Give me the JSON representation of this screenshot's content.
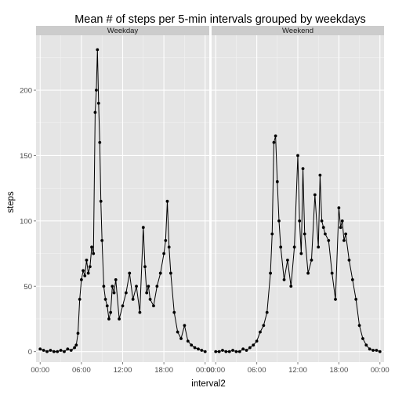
{
  "chart_data": {
    "type": "line",
    "title": "Mean # of steps per 5-min intervals grouped by weekdays",
    "xlabel": "interval2",
    "ylabel": "steps",
    "ylim": [
      -8,
      242
    ],
    "xlim": [
      -0.6,
      24.6
    ],
    "x_tick_values": [
      0,
      6,
      12,
      18,
      24
    ],
    "x_tick_labels": [
      "00:00",
      "06:00",
      "12:00",
      "18:00",
      "00:00"
    ],
    "y_ticks": [
      0,
      50,
      100,
      150,
      200
    ],
    "x_unit": "hours",
    "grid": true,
    "markers": true,
    "series_color": "#000000",
    "panels": [
      {
        "label": "Weekday",
        "x": [
          0,
          0.5,
          1,
          1.5,
          2,
          2.5,
          3,
          3.5,
          4,
          4.5,
          5,
          5.25,
          5.5,
          5.75,
          6,
          6.25,
          6.5,
          6.75,
          7,
          7.25,
          7.5,
          7.75,
          8,
          8.17,
          8.33,
          8.5,
          8.67,
          8.83,
          9,
          9.25,
          9.5,
          9.75,
          10,
          10.25,
          10.5,
          10.75,
          11,
          11.5,
          12,
          12.5,
          13,
          13.5,
          14,
          14.5,
          15,
          15.25,
          15.5,
          15.75,
          16,
          16.5,
          17,
          17.5,
          18,
          18.25,
          18.5,
          18.75,
          19,
          19.5,
          20,
          20.5,
          21,
          21.5,
          22,
          22.5,
          23,
          23.5,
          24
        ],
        "y": [
          2,
          1,
          0,
          1,
          0,
          0,
          1,
          0,
          2,
          1,
          3,
          5,
          14,
          40,
          55,
          62,
          58,
          70,
          60,
          65,
          80,
          75,
          183,
          200,
          231,
          190,
          160,
          115,
          85,
          50,
          40,
          35,
          25,
          30,
          50,
          45,
          55,
          25,
          35,
          45,
          60,
          40,
          50,
          30,
          95,
          65,
          45,
          50,
          40,
          35,
          50,
          60,
          75,
          85,
          115,
          80,
          60,
          30,
          15,
          10,
          20,
          8,
          5,
          3,
          2,
          1,
          0
        ]
      },
      {
        "label": "Weekend",
        "x": [
          0,
          0.5,
          1,
          1.5,
          2,
          2.5,
          3,
          3.5,
          4,
          4.5,
          5,
          5.5,
          6,
          6.5,
          7,
          7.5,
          8,
          8.25,
          8.5,
          8.75,
          9,
          9.25,
          9.5,
          10,
          10.5,
          11,
          11.5,
          12,
          12.25,
          12.5,
          12.75,
          13,
          13.5,
          14,
          14.5,
          15,
          15.25,
          15.5,
          15.75,
          16,
          16.5,
          17,
          17.5,
          18,
          18.25,
          18.5,
          18.75,
          19,
          19.5,
          20,
          20.5,
          21,
          21.5,
          22,
          22.5,
          23,
          23.5,
          24
        ],
        "y": [
          0,
          0,
          1,
          0,
          0,
          1,
          0,
          0,
          2,
          1,
          3,
          5,
          8,
          15,
          20,
          30,
          60,
          90,
          160,
          165,
          130,
          100,
          80,
          55,
          70,
          50,
          80,
          150,
          100,
          75,
          140,
          90,
          60,
          70,
          120,
          80,
          135,
          100,
          95,
          90,
          85,
          60,
          40,
          110,
          95,
          100,
          85,
          90,
          70,
          55,
          40,
          20,
          10,
          5,
          2,
          1,
          1,
          0
        ]
      }
    ]
  }
}
